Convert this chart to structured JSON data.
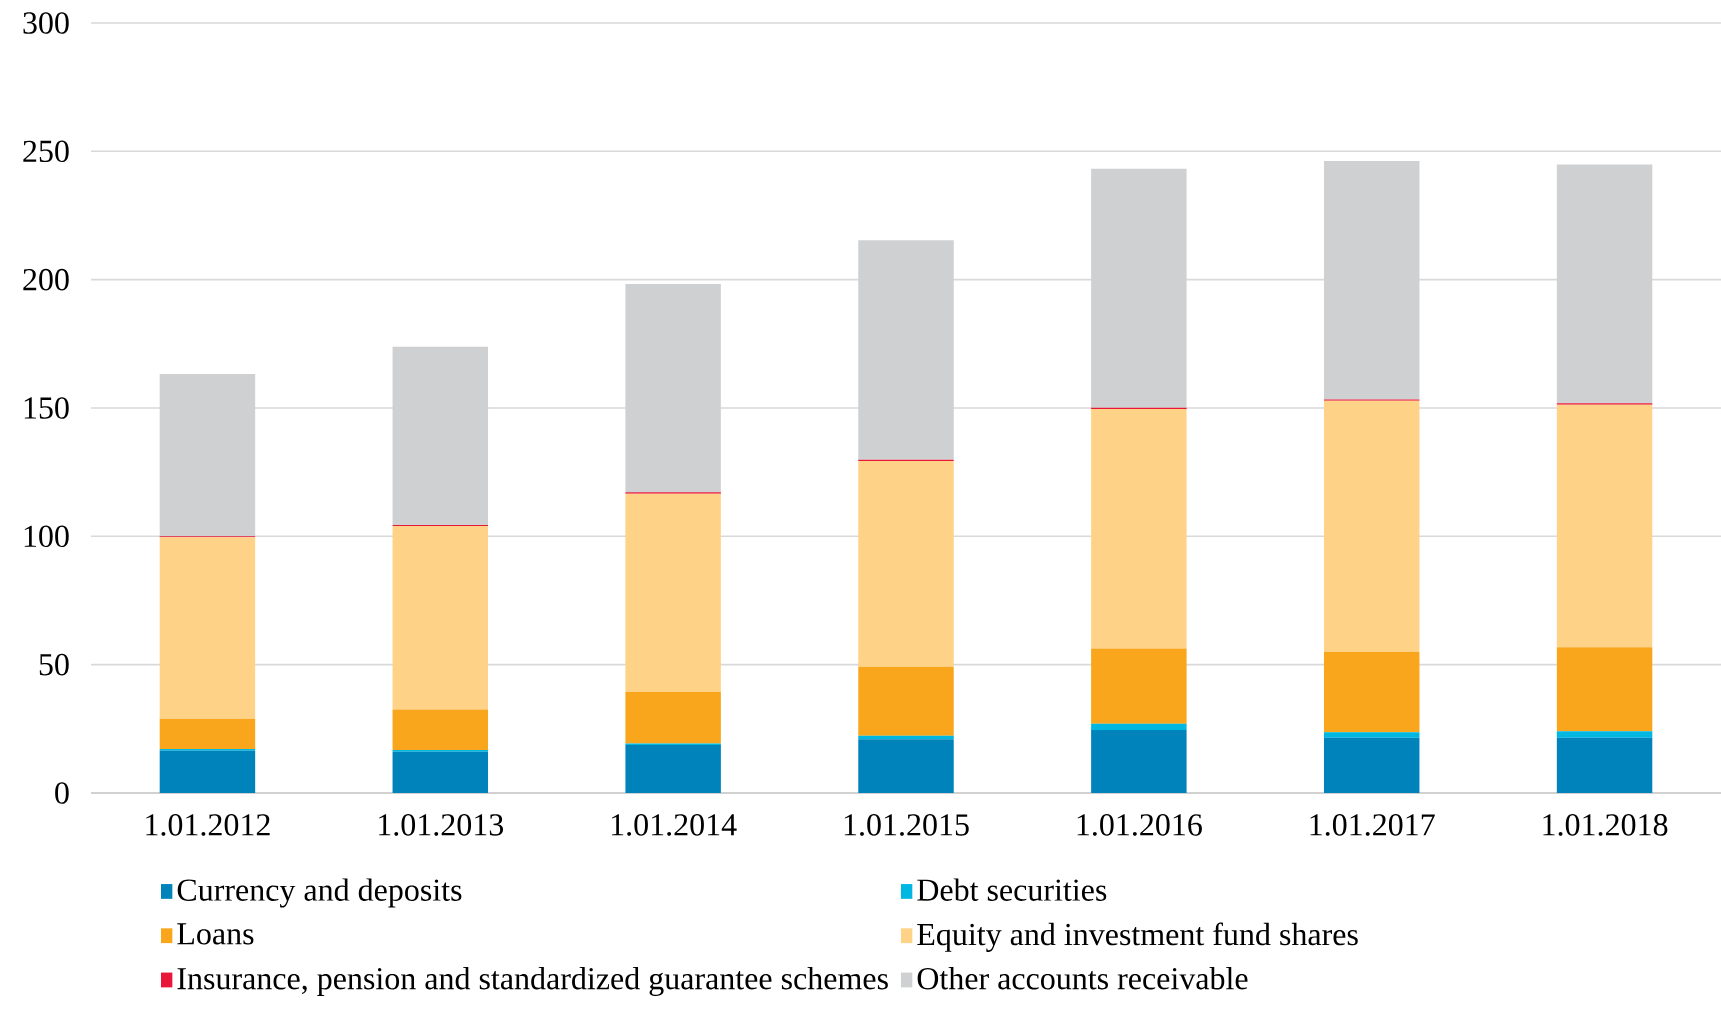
{
  "chart_data": {
    "type": "bar",
    "stacked": true,
    "categories": [
      "1.01.2012",
      "1.01.2013",
      "1.01.2014",
      "1.01.2015",
      "1.01.2016",
      "1.01.2017",
      "1.01.2018"
    ],
    "series": [
      {
        "name": "Currency and deposits",
        "color": "#0083bb",
        "values": [
          16.5,
          16.1,
          18.7,
          20.9,
          24.5,
          21.5,
          21.5
        ]
      },
      {
        "name": "Debt securities",
        "color": "#00b7e1",
        "values": [
          0.6,
          0.6,
          0.6,
          1.4,
          2.5,
          2.2,
          2.6
        ]
      },
      {
        "name": "Loans",
        "color": "#f9a61c",
        "values": [
          11.8,
          15.8,
          20.1,
          26.9,
          29.3,
          31.3,
          32.7
        ]
      },
      {
        "name": "Equity and investment fund shares",
        "color": "#fed387",
        "values": [
          70.7,
          71.5,
          77.2,
          80.1,
          93.3,
          97.8,
          94.5
        ]
      },
      {
        "name": "Insurance, pension and standardized guarantee schemes",
        "color": "#e8173a",
        "values": [
          0.4,
          0.4,
          0.6,
          0.5,
          0.5,
          0.5,
          0.5
        ]
      },
      {
        "name": "Other accounts receivable",
        "color": "#cfd0d2",
        "values": [
          63.2,
          69.5,
          81.1,
          85.6,
          93.1,
          92.9,
          93.1
        ]
      }
    ],
    "ylim": [
      0,
      300
    ],
    "yticks": [
      0,
      50,
      100,
      150,
      200,
      250,
      300
    ],
    "grid": "y",
    "legend": "bottom"
  }
}
